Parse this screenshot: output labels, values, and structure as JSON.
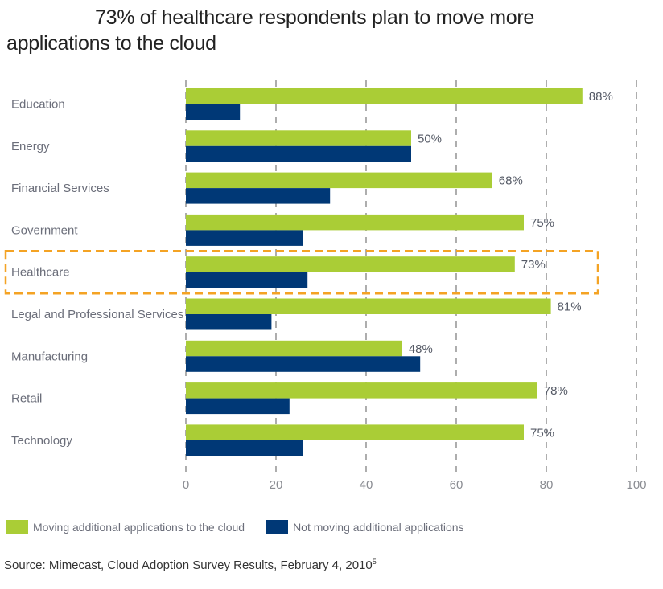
{
  "chart_data": {
    "type": "bar",
    "orientation": "horizontal",
    "title_line1": "73% of healthcare respondents plan to move more",
    "title_line2": "applications to the cloud",
    "categories": [
      "Education",
      "Energy",
      "Financial Services",
      "Government",
      "Healthcare",
      "Legal and Professional Services",
      "Manufacturing",
      "Retail",
      "Technology"
    ],
    "series": [
      {
        "name": "Moving additional applications to the cloud",
        "color": "#aacd36",
        "values": [
          88,
          50,
          68,
          75,
          73,
          81,
          48,
          78,
          75
        ],
        "labels": [
          "88%",
          "50%",
          "68%",
          "75%",
          "73%",
          "81%",
          "48%",
          "78%",
          "75%"
        ]
      },
      {
        "name": "Not moving additional applications",
        "color": "#003876",
        "values": [
          12,
          50,
          32,
          26,
          27,
          19,
          52,
          23,
          26
        ]
      }
    ],
    "xlim": [
      0,
      100
    ],
    "xticks": [
      0,
      20,
      40,
      60,
      80,
      100
    ],
    "xtick_labels": [
      "0",
      "20",
      "40",
      "60",
      "80",
      "100"
    ],
    "grid": "vertical-dashed",
    "highlight_category": "Healthcare",
    "highlight_color": "#f4a324",
    "legend_position": "bottom-left",
    "xlabel": "",
    "ylabel": ""
  },
  "source": {
    "text": "Source: Mimecast, Cloud Adoption Survey Results, February 4, 2010",
    "footnote": "5"
  }
}
